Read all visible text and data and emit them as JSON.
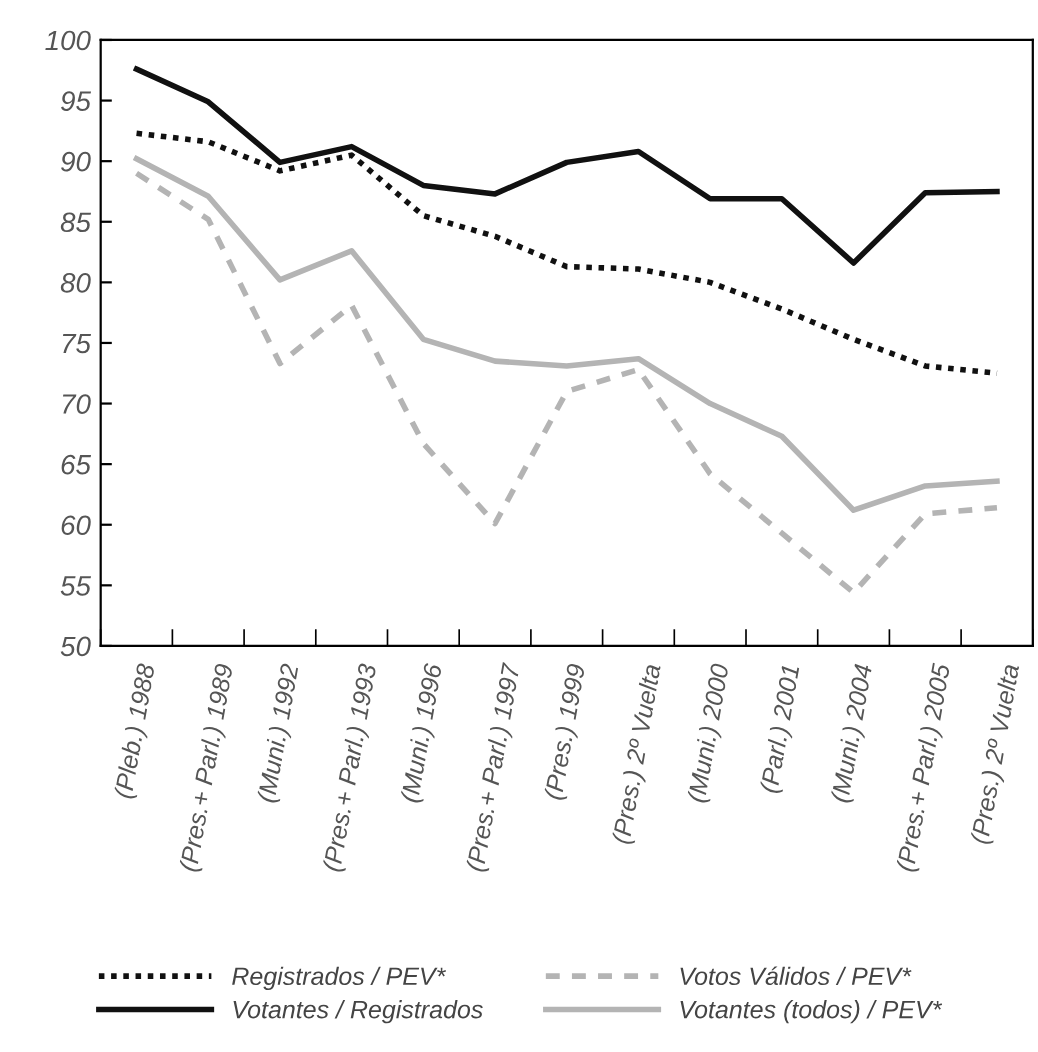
{
  "chart_data": {
    "type": "line",
    "categories": [
      "(Pleb.) 1988",
      "(Pres.+ Parl.) 1989",
      "(Muni.) 1992",
      "(Pres.+ Parl.) 1993",
      "(Muni.) 1996",
      "(Pres.+ Parl.) 1997",
      "(Pres.) 1999",
      "(Pres.) 2º Vuelta",
      "(Muni.) 2000",
      "(Parl.) 2001",
      "(Muni.) 2004",
      "(Pres.+ Parl.) 2005",
      "(Pres.) 2º Vuelta"
    ],
    "series": [
      {
        "name": "Registrados / PEV*",
        "color": "#111111",
        "line_style": "dotted",
        "values": [
          92.3,
          91.6,
          89.2,
          90.5,
          85.5,
          83.8,
          81.3,
          81.1,
          80.0,
          77.8,
          75.3,
          73.1,
          72.5
        ]
      },
      {
        "name": "Votantes / Registrados",
        "color": "#111111",
        "line_style": "solid",
        "values": [
          97.6,
          94.9,
          89.9,
          91.2,
          88.0,
          87.3,
          89.9,
          90.8,
          86.9,
          86.9,
          81.6,
          87.4,
          87.5
        ]
      },
      {
        "name": "Votos Válidos / PEV*",
        "color": "#b4b4b4",
        "line_style": "dashed",
        "values": [
          89.0,
          85.2,
          73.3,
          78.1,
          66.7,
          60.1,
          71.0,
          72.8,
          64.2,
          59.3,
          54.4,
          60.9,
          61.4
        ]
      },
      {
        "name": "Votantes (todos) / PEV*",
        "color": "#b4b4b4",
        "line_style": "solid",
        "values": [
          90.2,
          87.1,
          80.2,
          82.6,
          75.3,
          73.5,
          73.1,
          73.7,
          70.0,
          67.3,
          61.2,
          63.2,
          63.6
        ]
      }
    ],
    "ylim": [
      50,
      100
    ],
    "yticks": [
      50,
      55,
      60,
      65,
      70,
      75,
      80,
      85,
      90,
      95,
      100
    ],
    "grid": false,
    "legend": "bottom",
    "marker": "none"
  }
}
